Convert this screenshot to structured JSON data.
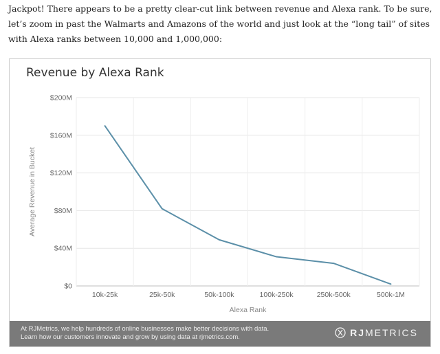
{
  "intro": {
    "text": "Jackpot! There appears to be a pretty clear-cut link between revenue and Alexa rank. To be sure, let’s zoom in past the Walmarts and Amazons of the world and just look at the “long tail” of sites with Alexa ranks between 10,000 and 1,000,000:"
  },
  "chart_data": {
    "type": "line",
    "title": "Revenue by Alexa Rank",
    "xlabel": "Alexa Rank",
    "ylabel": "Average Revenue in Bucket",
    "categories": [
      "10k-25k",
      "25k-50k",
      "50k-100k",
      "100k-250k",
      "250k-500k",
      "500k-1M"
    ],
    "series": [
      {
        "values": [
          170,
          82,
          49,
          31,
          24,
          2
        ]
      }
    ],
    "ylim": [
      0,
      200
    ],
    "yticks": [
      0,
      40,
      80,
      120,
      160,
      200
    ],
    "ytick_labels": [
      "$0",
      "$40M",
      "$80M",
      "$120M",
      "$160M",
      "$200M"
    ],
    "grid": true,
    "line_color": "#5b8fa8"
  },
  "footer": {
    "line1": "At RJMetrics, we help hundreds of online businesses make better decisions with data.",
    "line2": "Learn how our customers innovate and grow by using data at rjmetrics.com.",
    "brand_bold": "RJ",
    "brand_rest": "METRICS",
    "brand_icon": "rjmetrics-logo-icon"
  }
}
